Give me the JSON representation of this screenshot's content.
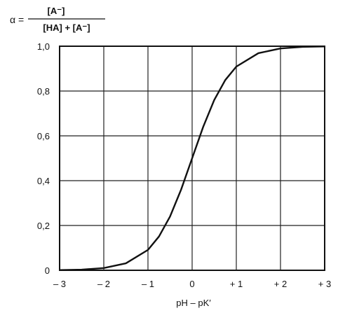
{
  "chart_data": {
    "type": "line",
    "ylabel_formula": {
      "lhs": "α =",
      "numerator": "[A⁻]",
      "denominator": "[HA] + [A⁻]"
    },
    "xlabel": "pH – pK′",
    "xlim": [
      -3,
      3
    ],
    "ylim": [
      0,
      1
    ],
    "x_ticks": [
      -3,
      -2,
      -1,
      0,
      1,
      2,
      3
    ],
    "x_tick_labels": [
      "– 3",
      "– 2",
      "– 1",
      "0",
      "+ 1",
      "+ 2",
      "+ 3"
    ],
    "y_ticks": [
      0,
      0.2,
      0.4,
      0.6,
      0.8,
      1.0
    ],
    "y_tick_labels": [
      "0",
      "0,2",
      "0,4",
      "0,6",
      "0,8",
      "1,0"
    ],
    "grid": true,
    "series": [
      {
        "x": [
          -3,
          -2.5,
          -2,
          -1.5,
          -1,
          -0.75,
          -0.5,
          -0.25,
          0,
          0.25,
          0.5,
          0.75,
          1,
          1.5,
          2,
          2.5,
          3
        ],
        "values": [
          0.001,
          0.003,
          0.01,
          0.031,
          0.091,
          0.151,
          0.24,
          0.36,
          0.5,
          0.64,
          0.76,
          0.849,
          0.909,
          0.969,
          0.99,
          0.997,
          0.999
        ]
      }
    ],
    "line_color": "#111111"
  }
}
